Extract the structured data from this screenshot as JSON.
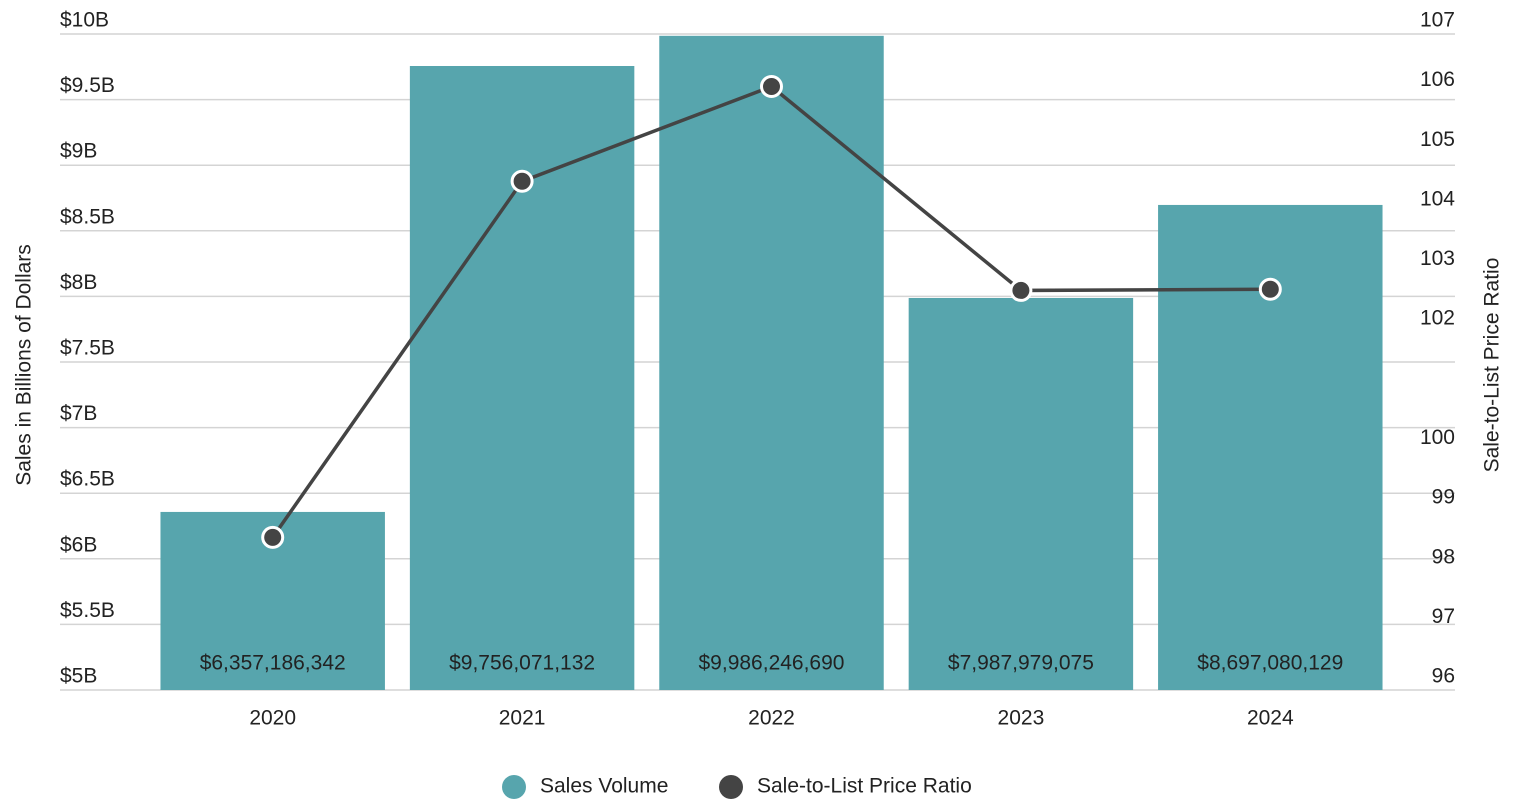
{
  "chart_data": {
    "type": "bar",
    "categories": [
      "2020",
      "2021",
      "2022",
      "2023",
      "2024"
    ],
    "series": [
      {
        "name": "Sales Volume",
        "type": "bar",
        "color": "#57a5ad",
        "values": [
          6357186342,
          9756071132,
          9986246690,
          7987979075,
          8697080129
        ],
        "value_labels": [
          "$6,357,186,342",
          "$9,756,071,132",
          "$9,986,246,690",
          "$7,987,979,075",
          "$8,697,080,129"
        ]
      },
      {
        "name": "Sale-to-List Price Ratio",
        "type": "line",
        "axis": "y2",
        "color": "#444444",
        "values": [
          98.56,
          104.53,
          106.12,
          102.7,
          102.72
        ]
      }
    ],
    "ylabel": "Sales in Billions of Dollars",
    "y2label": "Sale-to-List Price Ratio",
    "ylim": [
      5000000000,
      10000000000
    ],
    "yticks": [
      {
        "value": 5000000000,
        "label": "$5B"
      },
      {
        "value": 5500000000,
        "label": "$5.5B"
      },
      {
        "value": 6000000000,
        "label": "$6B"
      },
      {
        "value": 6500000000,
        "label": "$6.5B"
      },
      {
        "value": 7000000000,
        "label": "$7B"
      },
      {
        "value": 7500000000,
        "label": "$7.5B"
      },
      {
        "value": 8000000000,
        "label": "$8B"
      },
      {
        "value": 8500000000,
        "label": "$8.5B"
      },
      {
        "value": 9000000000,
        "label": "$9B"
      },
      {
        "value": 9500000000,
        "label": "$9.5B"
      },
      {
        "value": 10000000000,
        "label": "$10B"
      }
    ],
    "y2lim": [
      96,
      107
    ],
    "y2ticks": [
      96,
      97,
      98,
      99,
      100,
      102,
      103,
      104,
      105,
      106,
      107
    ],
    "grid": true,
    "legend": "bottom"
  }
}
